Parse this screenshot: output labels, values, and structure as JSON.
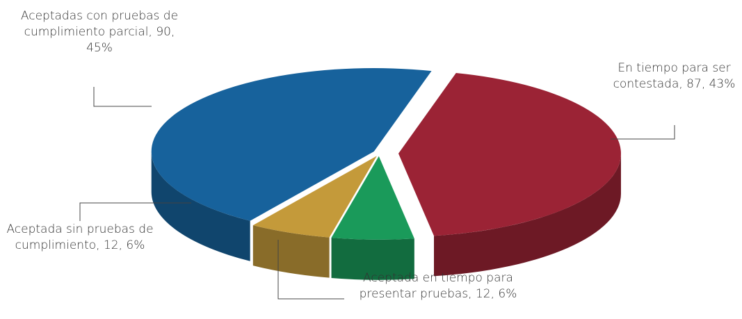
{
  "chart_data": {
    "type": "pie",
    "values": [
      87,
      12,
      12,
      90
    ],
    "value_labels": [
      "En tiempo para ser contestada, 87, 43%",
      "Aceptada en tiempo para presentar pruebas, 12, 6%",
      "Aceptada sin pruebas de cumplimiento, 12, 6%",
      "Aceptadas con pruebas de cumplimiento parcial, 90, 45%"
    ],
    "colors": [
      "#9b2335",
      "#1a9a5a",
      "#c49a3a",
      "#17629c"
    ]
  }
}
